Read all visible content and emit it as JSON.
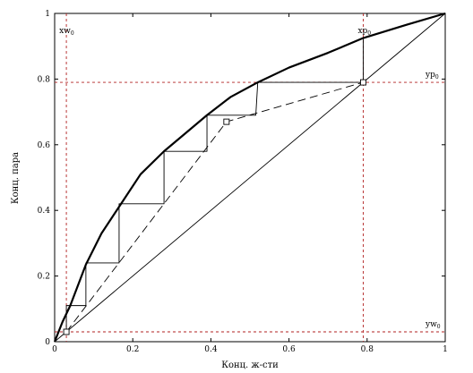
{
  "chart_data": {
    "type": "line",
    "title": "",
    "xlabel": "Конц. ж-сти",
    "ylabel": "Конц. пара",
    "xlim": [
      0,
      1
    ],
    "ylim": [
      0,
      1
    ],
    "grid": false,
    "x_ticks": [
      0,
      0.2,
      0.4,
      0.6,
      0.8,
      1
    ],
    "y_ticks": [
      0,
      0.2,
      0.4,
      0.6,
      0.8,
      1
    ],
    "x_tick_labels": [
      "0",
      "0.2",
      "0.4",
      "0.6",
      "0.8",
      "1"
    ],
    "y_tick_labels": [
      "0",
      "0.2",
      "0.4",
      "0.6",
      "0.8",
      "1"
    ],
    "series": [
      {
        "role": "equilibrium",
        "style": "solid-thick",
        "points": [
          [
            0,
            0
          ],
          [
            0.02,
            0.06
          ],
          [
            0.04,
            0.11
          ],
          [
            0.08,
            0.235
          ],
          [
            0.12,
            0.33
          ],
          [
            0.17,
            0.42
          ],
          [
            0.22,
            0.51
          ],
          [
            0.28,
            0.58
          ],
          [
            0.34,
            0.64
          ],
          [
            0.39,
            0.69
          ],
          [
            0.45,
            0.745
          ],
          [
            0.52,
            0.79
          ],
          [
            0.6,
            0.835
          ],
          [
            0.7,
            0.88
          ],
          [
            0.79,
            0.925
          ],
          [
            0.9,
            0.965
          ],
          [
            1,
            1
          ]
        ]
      },
      {
        "role": "diagonal",
        "style": "solid-thin",
        "points": [
          [
            0,
            0
          ],
          [
            1,
            1
          ]
        ]
      },
      {
        "role": "operating-line",
        "style": "dashed",
        "points": [
          [
            0.03,
            0.03
          ],
          [
            0.44,
            0.67
          ],
          [
            0.79,
            0.79
          ]
        ]
      },
      {
        "role": "steps",
        "style": "solid-thin",
        "points": [
          [
            0.79,
            0.79
          ],
          [
            0.79,
            0.925
          ],
          [
            0.79,
            0.79
          ],
          [
            0.52,
            0.79
          ],
          [
            0.515,
            0.69
          ],
          [
            0.39,
            0.69
          ],
          [
            0.39,
            0.58
          ],
          [
            0.28,
            0.58
          ],
          [
            0.28,
            0.42
          ],
          [
            0.165,
            0.42
          ],
          [
            0.165,
            0.24
          ],
          [
            0.08,
            0.24
          ],
          [
            0.08,
            0.11
          ],
          [
            0.03,
            0.11
          ],
          [
            0.03,
            0.03
          ]
        ]
      }
    ],
    "reference_lines": [
      {
        "orient": "vertical",
        "value": 0.03,
        "label": "xw",
        "label_sub": "0"
      },
      {
        "orient": "vertical",
        "value": 0.79,
        "label": "xp",
        "label_sub": "0"
      },
      {
        "orient": "horizontal",
        "value": 0.79,
        "label": "yp",
        "label_sub": "0"
      },
      {
        "orient": "horizontal",
        "value": 0.03,
        "label": "yw",
        "label_sub": "0"
      }
    ],
    "markers": [
      [
        0.03,
        0.03
      ],
      [
        0.44,
        0.67
      ],
      [
        0.79,
        0.79
      ]
    ],
    "colors": {
      "axis": "#000000",
      "reference": "#b22222"
    }
  }
}
